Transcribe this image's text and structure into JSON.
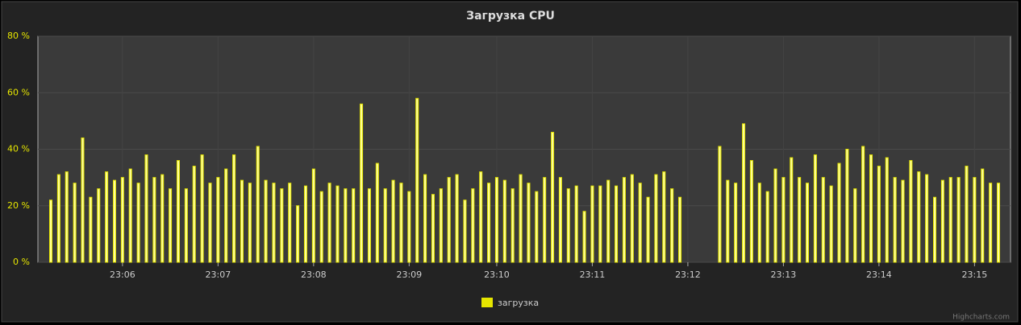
{
  "chart_data": {
    "type": "bar",
    "title": "Загрузка CPU",
    "categories": [
      null,
      null,
      null,
      null,
      null,
      null,
      null,
      null,
      null,
      "23:06",
      null,
      null,
      null,
      null,
      null,
      null,
      null,
      null,
      null,
      null,
      null,
      "23:07",
      null,
      null,
      null,
      null,
      null,
      null,
      null,
      null,
      null,
      null,
      null,
      "23:08",
      null,
      null,
      null,
      null,
      null,
      null,
      null,
      null,
      null,
      null,
      null,
      "23:09",
      null,
      null,
      null,
      null,
      null,
      null,
      null,
      null,
      null,
      null,
      "23:10",
      null,
      null,
      null,
      null,
      null,
      null,
      null,
      null,
      null,
      null,
      null,
      "23:11",
      null,
      null,
      null,
      null,
      null,
      null,
      null,
      null,
      null,
      null,
      null,
      "23:12",
      null,
      null,
      null,
      null,
      null,
      null,
      null,
      null,
      null,
      null,
      null,
      "23:13",
      null,
      null,
      null,
      null,
      null,
      null,
      null,
      null,
      null,
      null,
      null,
      "23:14",
      null,
      null,
      null,
      null,
      null,
      null,
      null,
      null,
      null,
      null,
      null,
      "23:15",
      null,
      null,
      null
    ],
    "series": [
      {
        "name": "загрузка",
        "color": "#e6e600",
        "values": [
          22,
          31,
          32,
          28,
          44,
          23,
          26,
          32,
          29,
          30,
          33,
          28,
          38,
          30,
          31,
          26,
          36,
          26,
          34,
          38,
          28,
          30,
          33,
          38,
          29,
          28,
          41,
          29,
          28,
          26,
          28,
          20,
          27,
          33,
          25,
          28,
          27,
          26,
          26,
          56,
          26,
          35,
          26,
          29,
          28,
          25,
          58,
          31,
          24,
          26,
          30,
          31,
          22,
          26,
          32,
          28,
          30,
          29,
          26,
          31,
          28,
          25,
          30,
          46,
          30,
          26,
          27,
          18,
          27,
          27,
          29,
          27,
          30,
          31,
          28,
          23,
          31,
          32,
          26,
          23,
          null,
          null,
          null,
          null,
          41,
          29,
          28,
          49,
          36,
          28,
          25,
          33,
          30,
          37,
          30,
          28,
          38,
          30,
          27,
          35,
          40,
          26,
          41,
          38,
          34,
          37,
          30,
          29,
          36,
          32,
          31,
          23,
          29,
          30,
          30,
          34,
          30,
          33,
          28,
          28
        ]
      }
    ],
    "ylim": [
      0,
      80
    ],
    "yticks": [
      {
        "value": 0,
        "label": "0 %"
      },
      {
        "value": 20,
        "label": "20 %"
      },
      {
        "value": 40,
        "label": "40 %"
      },
      {
        "value": 60,
        "label": "60 %"
      },
      {
        "value": 80,
        "label": "80 %"
      }
    ],
    "grid": true,
    "legend": "bottom",
    "credits": "Highcharts.com"
  }
}
